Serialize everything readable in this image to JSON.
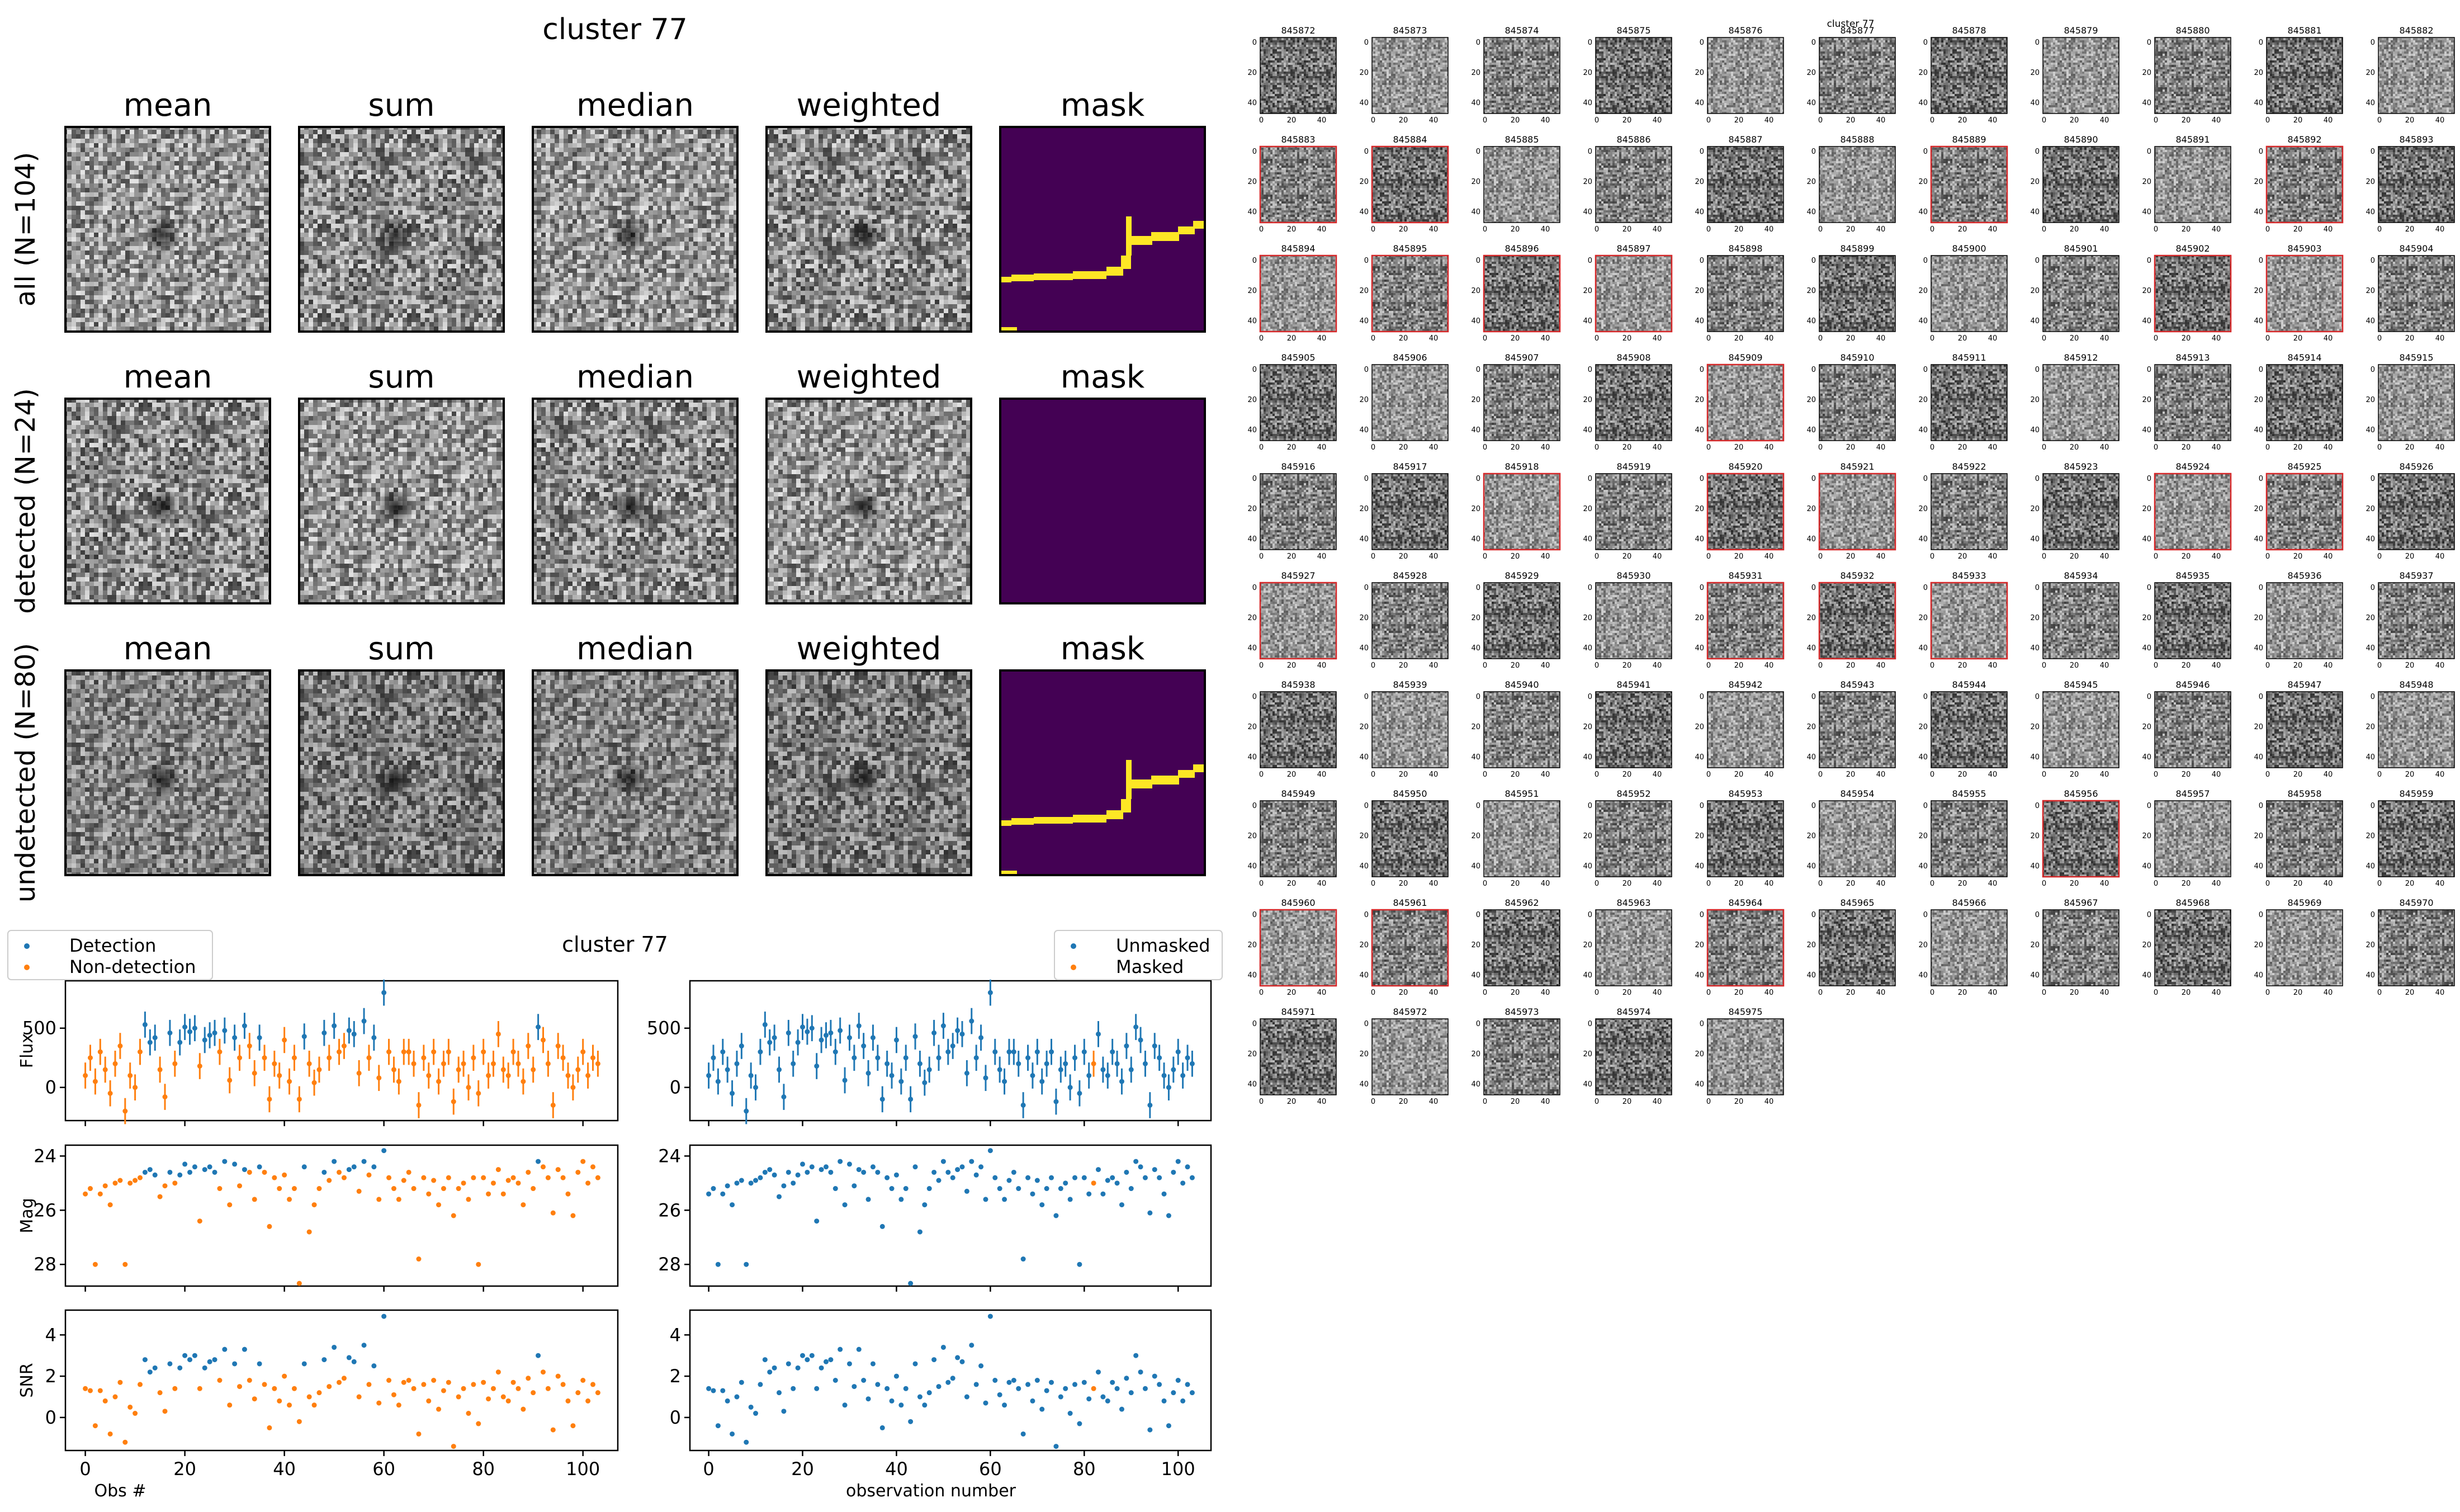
{
  "colors": {
    "detection": "#1f77b4",
    "nondetection": "#ff7f0e",
    "mask_bg": "#440154",
    "mask_fg": "#fde725",
    "flagged_border": "#d62728"
  },
  "stacks": {
    "title": "cluster 77",
    "columns": [
      "mean",
      "sum",
      "median",
      "weighted",
      "mask"
    ],
    "rows": [
      {
        "label": "all (N=104)",
        "mask": "track"
      },
      {
        "label": "detected (N=24)",
        "mask": "empty"
      },
      {
        "label": "undetected (N=80)",
        "mask": "track"
      }
    ]
  },
  "chart_data": [
    {
      "type": "scatter",
      "panel": "lightcurve-detection",
      "title": "cluster 77",
      "legend": {
        "placement": "top-left",
        "entries": [
          "Detection",
          "Non-detection"
        ]
      },
      "xlabel": "Obs #",
      "xlim": [
        -4,
        107
      ],
      "xticks": [
        0,
        20,
        40,
        60,
        80,
        100
      ],
      "subplots": [
        {
          "ylabel": "Flux",
          "ylim": [
            -280,
            900
          ],
          "yticks": [
            0,
            500
          ],
          "errorbars": true
        },
        {
          "ylabel": "Mag",
          "ylim": [
            28.8,
            23.6
          ],
          "yticks": [
            24,
            26,
            28
          ],
          "errorbars": false
        },
        {
          "ylabel": "SNR",
          "ylim": [
            -1.6,
            5.2
          ],
          "yticks": [
            0,
            2,
            4
          ],
          "errorbars": false
        }
      ],
      "series": [
        {
          "name": "Detection",
          "color": "#1f77b4",
          "x": [
            12,
            13,
            14,
            17,
            19,
            20,
            21,
            22,
            24,
            25,
            26,
            28,
            30,
            32,
            35,
            44,
            48,
            50,
            53,
            54,
            56,
            58,
            60,
            91
          ],
          "flux": [
            530,
            380,
            420,
            460,
            380,
            510,
            470,
            500,
            400,
            440,
            460,
            480,
            420,
            520,
            420,
            430,
            460,
            520,
            480,
            450,
            560,
            420,
            800,
            510
          ],
          "mag": [
            24.6,
            24.5,
            24.7,
            24.6,
            24.7,
            24.3,
            24.6,
            24.4,
            24.5,
            24.4,
            24.6,
            24.2,
            24.3,
            24.5,
            24.4,
            24.4,
            24.6,
            24.2,
            24.5,
            24.4,
            24.2,
            24.4,
            23.8,
            24.2
          ],
          "snr": [
            2.8,
            2.2,
            2.4,
            2.6,
            2.4,
            3.0,
            2.8,
            3.0,
            2.4,
            2.7,
            2.8,
            3.3,
            2.6,
            3.3,
            2.6,
            2.6,
            2.8,
            3.4,
            2.9,
            2.7,
            3.5,
            2.5,
            4.9,
            3.0
          ]
        },
        {
          "name": "Non-detection",
          "color": "#ff7f0e",
          "x": [
            0,
            1,
            2,
            3,
            4,
            5,
            6,
            7,
            8,
            9,
            10,
            11,
            15,
            16,
            18,
            23,
            27,
            29,
            31,
            33,
            34,
            36,
            37,
            38,
            39,
            40,
            41,
            42,
            43,
            45,
            46,
            47,
            49,
            51,
            52,
            55,
            57,
            59,
            61,
            62,
            63,
            64,
            65,
            66,
            67,
            68,
            69,
            70,
            71,
            72,
            73,
            74,
            75,
            76,
            77,
            78,
            79,
            80,
            81,
            82,
            83,
            84,
            85,
            86,
            87,
            88,
            89,
            90,
            92,
            93,
            94,
            95,
            96,
            97,
            98,
            99,
            100,
            101,
            102,
            103
          ],
          "flux": [
            100,
            250,
            50,
            300,
            150,
            -50,
            200,
            350,
            -200,
            100,
            0,
            300,
            150,
            -80,
            200,
            180,
            300,
            60,
            250,
            350,
            120,
            250,
            -100,
            200,
            100,
            400,
            50,
            250,
            -100,
            200,
            40,
            150,
            250,
            300,
            350,
            120,
            250,
            80,
            300,
            150,
            50,
            300,
            300,
            200,
            -150,
            250,
            100,
            300,
            50,
            200,
            300,
            -120,
            150,
            200,
            0,
            250,
            -50,
            300,
            100,
            200,
            450,
            150,
            100,
            300,
            200,
            50,
            350,
            150,
            400,
            200,
            -150,
            350,
            250,
            100,
            0,
            150,
            300,
            100,
            250,
            200
          ],
          "mag": [
            25.4,
            25.2,
            28.0,
            25.4,
            25.1,
            25.8,
            25.0,
            24.9,
            28.0,
            25.0,
            24.9,
            24.8,
            25.5,
            25.1,
            25.0,
            26.4,
            25.2,
            25.8,
            25.1,
            24.6,
            25.6,
            24.6,
            26.6,
            24.8,
            25.2,
            24.7,
            25.6,
            25.2,
            28.7,
            26.8,
            25.8,
            25.2,
            24.9,
            24.6,
            24.8,
            25.3,
            24.7,
            25.6,
            24.8,
            25.2,
            25.6,
            24.9,
            24.6,
            25.2,
            27.8,
            24.8,
            25.4,
            24.9,
            25.8,
            25.2,
            24.8,
            26.2,
            25.2,
            25.0,
            25.6,
            24.8,
            28.0,
            24.8,
            25.4,
            25.0,
            24.5,
            25.4,
            24.9,
            24.8,
            25.0,
            25.8,
            24.6,
            25.2,
            24.4,
            24.8,
            26.1,
            24.5,
            24.8,
            25.4,
            26.2,
            24.6,
            24.2,
            25.0,
            24.4,
            24.8
          ],
          "snr": [
            1.4,
            1.3,
            -0.4,
            1.3,
            0.8,
            -0.8,
            1.0,
            1.7,
            -1.2,
            0.5,
            0.2,
            1.6,
            1.2,
            0.3,
            1.4,
            1.4,
            1.8,
            0.6,
            1.5,
            1.8,
            0.9,
            1.6,
            -0.5,
            1.4,
            0.8,
            2.0,
            0.6,
            1.4,
            -0.2,
            1.0,
            0.6,
            1.2,
            1.5,
            1.7,
            1.9,
            1.0,
            1.6,
            0.7,
            1.8,
            1.1,
            0.6,
            1.7,
            1.8,
            1.4,
            -0.8,
            1.6,
            0.8,
            1.8,
            0.4,
            1.3,
            1.7,
            -1.4,
            1.0,
            1.4,
            0.2,
            1.6,
            -0.3,
            1.7,
            0.9,
            1.4,
            2.2,
            1.0,
            0.8,
            1.7,
            1.4,
            0.4,
            1.9,
            1.2,
            2.2,
            1.4,
            -0.6,
            2.0,
            1.6,
            0.8,
            -0.4,
            1.2,
            1.8,
            0.8,
            1.6,
            1.2
          ]
        }
      ]
    },
    {
      "type": "scatter",
      "panel": "lightcurve-mask",
      "legend": {
        "placement": "top-right",
        "entries": [
          "Unmasked",
          "Masked"
        ]
      },
      "xlabel": "observation number",
      "xlim": [
        -4,
        107
      ],
      "xticks": [
        0,
        20,
        40,
        60,
        80,
        100
      ],
      "subplots": [
        {
          "ylim": [
            -280,
            900
          ],
          "yticks": [
            0,
            500
          ]
        },
        {
          "ylim": [
            28.8,
            23.6
          ],
          "yticks": [
            24,
            26,
            28
          ]
        },
        {
          "ylim": [
            -1.6,
            5.2
          ],
          "yticks": [
            0,
            2,
            4
          ]
        }
      ],
      "series": [
        {
          "name": "Unmasked",
          "color": "#1f77b4",
          "from": "all-except-masked"
        },
        {
          "name": "Masked",
          "color": "#ff7f0e",
          "x": [
            82
          ]
        }
      ]
    }
  ],
  "cutouts": {
    "title": "cluster 77",
    "ticks": {
      "y": [
        "0",
        "20",
        "40"
      ],
      "x": [
        "0",
        "20",
        "40"
      ]
    },
    "start_id": 845872,
    "end_id": 845975,
    "flagged": [
      845883,
      845884,
      845889,
      845892,
      845894,
      845895,
      845896,
      845897,
      845902,
      845903,
      845909,
      845918,
      845920,
      845921,
      845924,
      845925,
      845927,
      845931,
      845932,
      845933,
      845956,
      845960,
      845961,
      845964
    ]
  }
}
